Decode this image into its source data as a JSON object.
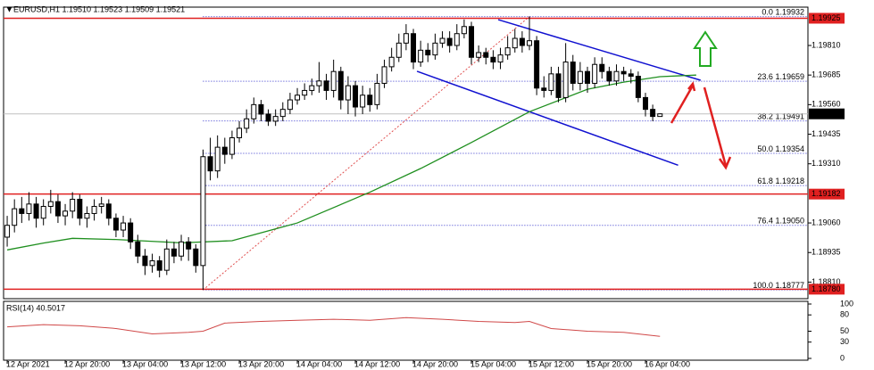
{
  "chart_data": {
    "type": "candlestick",
    "title": "EURUSD,H1  1.19510 1.19523 1.19509 1.19521",
    "categories": [
      "12 Apr 2021",
      null,
      null,
      null,
      null,
      null,
      null,
      null,
      "12 Apr 20:00",
      null,
      null,
      null,
      null,
      null,
      null,
      null,
      "13 Apr 04:00",
      null,
      null,
      null,
      null,
      null,
      null,
      null,
      "13 Apr 12:00",
      null,
      null,
      null,
      null,
      null,
      null,
      null,
      "13 Apr 20:00",
      null,
      null,
      null,
      null,
      null,
      null,
      null,
      "14 Apr 04:00",
      null,
      null,
      null,
      null,
      null,
      null,
      null,
      "14 Apr 12:00",
      null,
      null,
      null,
      null,
      null,
      null,
      null,
      "14 Apr 20:00",
      null,
      null,
      null,
      null,
      null,
      null,
      null,
      "15 Apr 04:00",
      null,
      null,
      null,
      null,
      null,
      null,
      null,
      "15 Apr 12:00",
      null,
      null,
      null,
      null,
      null,
      null,
      null,
      "15 Apr 20:00",
      null,
      null,
      null,
      null,
      null,
      null,
      null,
      "16 Apr 04:00",
      null,
      null
    ],
    "open": [
      1.19,
      1.1905,
      1.1912,
      1.191,
      1.1914,
      1.1908,
      1.1913,
      1.1915,
      1.1909,
      1.1911,
      1.1916,
      1.1908,
      1.191,
      1.1913,
      1.1914,
      1.1908,
      1.1903,
      1.1906,
      1.1898,
      1.1892,
      1.1888,
      1.189,
      1.1886,
      1.1895,
      1.1892,
      1.1898,
      1.1895,
      1.1888,
      1.1934,
      1.1928,
      1.1938,
      1.1935,
      1.1942,
      1.1946,
      1.195,
      1.1956,
      1.1952,
      1.1949,
      1.1951,
      1.1954,
      1.1958,
      1.196,
      1.1962,
      1.1964,
      1.1966,
      1.1962,
      1.197,
      1.1958,
      1.1964,
      1.1955,
      1.196,
      1.1956,
      1.1965,
      1.1972,
      1.1976,
      1.1982,
      1.1986,
      1.1974,
      1.1979,
      1.1977,
      1.1982,
      1.1984,
      1.1981,
      1.1986,
      1.1989,
      1.1976,
      1.1978,
      1.1976,
      1.1974,
      1.1977,
      1.198,
      1.1984,
      1.1981,
      1.1983,
      1.1963,
      1.1962,
      1.1969,
      1.1959,
      1.1974,
      1.1965,
      1.197,
      1.1965,
      1.1973,
      1.197,
      1.1966,
      1.197,
      1.1969,
      1.1968,
      1.1959,
      1.1954,
      1.1951
    ],
    "high": [
      1.1909,
      1.1916,
      1.1917,
      1.1919,
      1.1917,
      1.1916,
      1.192,
      1.1918,
      1.1914,
      1.1919,
      1.1918,
      1.1913,
      1.1916,
      1.1917,
      1.1916,
      1.191,
      1.1909,
      1.1908,
      1.1901,
      1.1895,
      1.1893,
      1.1892,
      1.1899,
      1.1898,
      1.1901,
      1.19,
      1.1897,
      1.1937,
      1.1942,
      1.1943,
      1.1942,
      1.1945,
      1.1949,
      1.1954,
      1.1959,
      1.1958,
      1.1954,
      1.1954,
      1.1957,
      1.1961,
      1.1963,
      1.1965,
      1.1967,
      1.1974,
      1.1969,
      1.1975,
      1.1972,
      1.1968,
      1.1966,
      1.1964,
      1.1963,
      1.1969,
      1.1975,
      1.198,
      1.1986,
      1.199,
      1.1988,
      1.1983,
      1.1982,
      1.1986,
      1.1987,
      1.1987,
      1.199,
      1.1992,
      1.1991,
      1.1981,
      1.198,
      1.1979,
      1.198,
      1.1985,
      1.1988,
      1.1987,
      1.19932,
      1.1985,
      1.1968,
      1.1972,
      1.1972,
      1.1982,
      1.1977,
      1.1974,
      1.1972,
      1.1976,
      1.1976,
      1.1972,
      1.1973,
      1.1972,
      1.1971,
      1.197,
      1.1961,
      1.1956,
      1.19523
    ],
    "low": [
      1.1896,
      1.1902,
      1.1906,
      1.1907,
      1.1904,
      1.1905,
      1.191,
      1.1906,
      1.1905,
      1.1908,
      1.1905,
      1.1904,
      1.1907,
      1.191,
      1.1905,
      1.19,
      1.19,
      1.1895,
      1.1889,
      1.1884,
      1.1885,
      1.1883,
      1.1884,
      1.1889,
      1.189,
      1.189,
      1.1885,
      1.18777,
      1.1924,
      1.1925,
      1.1931,
      1.1933,
      1.194,
      1.1944,
      1.1948,
      1.1949,
      1.1947,
      1.1947,
      1.1949,
      1.1952,
      1.1956,
      1.1958,
      1.196,
      1.1961,
      1.1958,
      1.1959,
      1.1954,
      1.1952,
      1.1951,
      1.1952,
      1.1953,
      1.1954,
      1.1963,
      1.197,
      1.1974,
      1.1979,
      1.1971,
      1.1972,
      1.1974,
      1.1975,
      1.198,
      1.1978,
      1.1979,
      1.1984,
      1.1973,
      1.1974,
      1.1973,
      1.1971,
      1.1971,
      1.1975,
      1.1978,
      1.1978,
      1.1979,
      1.196,
      1.1959,
      1.196,
      1.1957,
      1.1957,
      1.1962,
      1.1962,
      1.1961,
      1.1963,
      1.1967,
      1.1964,
      1.1964,
      1.1966,
      1.1965,
      1.1957,
      1.1951,
      1.1949,
      1.19509
    ],
    "close": [
      1.1905,
      1.1912,
      1.191,
      1.1914,
      1.1908,
      1.1913,
      1.1915,
      1.1909,
      1.1911,
      1.1916,
      1.1908,
      1.191,
      1.1913,
      1.1914,
      1.1908,
      1.1903,
      1.1906,
      1.1898,
      1.1892,
      1.1888,
      1.189,
      1.1886,
      1.1895,
      1.1892,
      1.1898,
      1.1895,
      1.1888,
      1.1934,
      1.1928,
      1.1938,
      1.1935,
      1.1942,
      1.1946,
      1.195,
      1.1956,
      1.1952,
      1.1949,
      1.1951,
      1.1954,
      1.1958,
      1.196,
      1.1962,
      1.1964,
      1.1966,
      1.1962,
      1.197,
      1.1958,
      1.1964,
      1.1955,
      1.196,
      1.1956,
      1.1965,
      1.1972,
      1.1976,
      1.1982,
      1.1986,
      1.1974,
      1.1979,
      1.1977,
      1.1982,
      1.1984,
      1.1981,
      1.1986,
      1.1989,
      1.1976,
      1.1978,
      1.1976,
      1.1974,
      1.1977,
      1.198,
      1.1984,
      1.1981,
      1.1983,
      1.1963,
      1.1962,
      1.1969,
      1.1959,
      1.1974,
      1.1965,
      1.197,
      1.1965,
      1.1973,
      1.197,
      1.1966,
      1.197,
      1.1969,
      1.1968,
      1.1959,
      1.1954,
      1.1951,
      1.19521
    ],
    "bull_color": "#ffffff",
    "bear_color": "#000000",
    "xlim": [
      -0.5,
      110.4
    ],
    "ylim": [
      1.1874,
      1.19972
    ],
    "yticks": [
      {
        "value": 1.1981,
        "label": "1.19810"
      },
      1.19685,
      {
        "value": 1.1956,
        "label": "1.19560"
      },
      1.19435,
      {
        "value": 1.1931,
        "label": "1.19310"
      },
      {
        "value": 1.1906,
        "label": "1.19060"
      },
      1.18935,
      {
        "value": 1.1881,
        "label": "1.18810"
      }
    ],
    "grid": false,
    "ma": {
      "color": "#1f8f1f",
      "x": [
        0,
        5,
        9,
        15,
        24,
        31,
        40,
        50,
        57,
        64,
        72,
        80,
        85,
        90,
        95
      ],
      "values": [
        1.18946,
        1.18975,
        1.18995,
        1.1899,
        1.18976,
        1.18985,
        1.1906,
        1.1919,
        1.1929,
        1.194,
        1.1953,
        1.19625,
        1.19655,
        1.19678,
        1.19685
      ]
    },
    "red_lines": {
      "color": "#e02020",
      "levels": [
        1.19925,
        1.19182,
        {
          "value": 1.1878,
          "label": "1.18780"
        }
      ]
    },
    "current_price": 1.19521,
    "fib": {
      "color": "#3333cc",
      "start": 27,
      "diagonal": {
        "color": "#e05050",
        "x": [
          27,
          72
        ],
        "values": [
          1.18777,
          1.19932
        ]
      },
      "levels": [
        {
          "level": "0.0",
          "price": 1.19932
        },
        {
          "level": "23.6",
          "price": 1.19659
        },
        {
          "level": "38.2",
          "price": 1.19491
        },
        {
          "level": "50.0",
          "price": 1.19354
        },
        {
          "level": "61.8",
          "price": 1.19218
        },
        {
          "level": "76.4",
          "price": {
            "value": 1.1905,
            "label": "1.19050"
          }
        },
        {
          "level": "100.0",
          "price": 1.18777
        }
      ]
    },
    "trendlines": {
      "color": "#1010d0",
      "lines": [
        {
          "x": [
            67.7,
            95.6
          ],
          "values": [
            1.19919,
            1.19663
          ]
        },
        {
          "x": [
            56.5,
            92.5
          ],
          "values": [
            1.19701,
            1.19304
          ]
        }
      ]
    },
    "rsi": {
      "title": "RSI(14) 40.5017",
      "color": "#d04848",
      "ylim": [
        0,
        100
      ],
      "yticks": [
        100,
        80,
        50,
        30,
        0
      ],
      "x": [
        0,
        5,
        10,
        15,
        20,
        25,
        27,
        30,
        35,
        40,
        45,
        50,
        55,
        60,
        65,
        70,
        72,
        75,
        80,
        85,
        90
      ],
      "values": [
        58,
        62,
        60,
        55,
        45,
        48,
        50,
        65,
        68,
        70,
        72,
        70,
        75,
        72,
        68,
        66,
        68,
        55,
        50,
        48,
        40.5017
      ]
    }
  }
}
